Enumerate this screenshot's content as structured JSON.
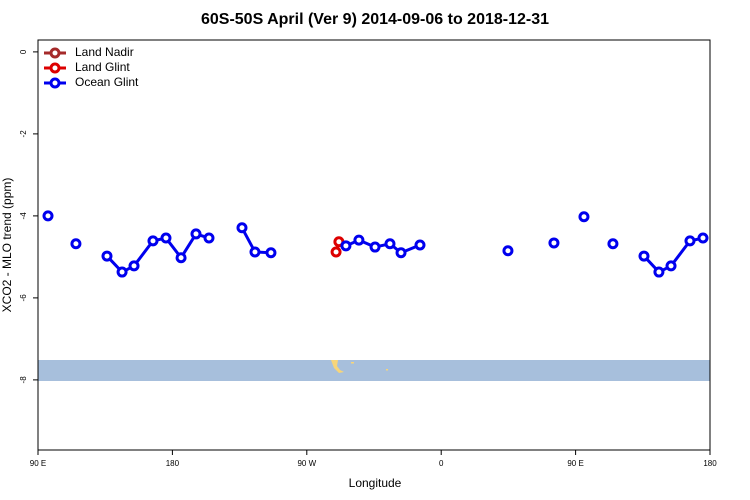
{
  "chart_data": {
    "type": "line",
    "title": "60S-50S April (Ver 9)   2014-09-06 to 2018-12-31",
    "x_label": "Longitude",
    "y_label": "XCO2 - MLO trend (ppm)",
    "xlim": [
      90,
      540
    ],
    "xticks": [
      {
        "value": 90,
        "label": "90 E"
      },
      180,
      {
        "value": 270,
        "label": "90 W"
      },
      {
        "value": 360,
        "label": "0"
      },
      {
        "value": 450,
        "label": "90 E"
      },
      {
        "value": 540,
        "label": "180"
      }
    ],
    "ylim": [
      -9.71,
      0.29
    ],
    "yticks": [
      0,
      -2,
      -4,
      -6,
      -8
    ],
    "legend": "top-left",
    "series": [
      {
        "name": "Land Nadir",
        "color": "#a52a2a",
        "x": [],
        "values": []
      },
      {
        "name": "Land Glint",
        "color": "#dd0000",
        "x": [
          289.6,
          291.5
        ],
        "values": [
          -4.88,
          -4.63
        ]
      },
      {
        "name": "Ocean Glint",
        "color": "#0000ee",
        "x": [
          96.7,
          106,
          115.4,
          126,
          136.2,
          146.3,
          154.3,
          167.0,
          175.7,
          185.8,
          195.8,
          204.5,
          215,
          226.6,
          235.3,
          246.0,
          256,
          296.2,
          304.9,
          315.7,
          325.7,
          333.1,
          345.8,
          356,
          404.7,
          415,
          435.5,
          445,
          455.6,
          465,
          475.0,
          485,
          495.8,
          505.8,
          513.9,
          526.6,
          535.3
        ],
        "values": [
          -4.0,
          null,
          -4.68,
          null,
          -4.98,
          -5.37,
          -5.22,
          -4.61,
          -4.54,
          -5.02,
          -4.44,
          -4.54,
          null,
          -4.29,
          -4.88,
          -4.9,
          null,
          -4.73,
          -4.59,
          -4.76,
          -4.68,
          -4.9,
          -4.71,
          null,
          -4.85,
          null,
          -4.66,
          null,
          -4.02,
          null,
          -4.68,
          null,
          -4.98,
          -5.37,
          -5.22,
          -4.61,
          -4.54
        ]
      }
    ]
  }
}
